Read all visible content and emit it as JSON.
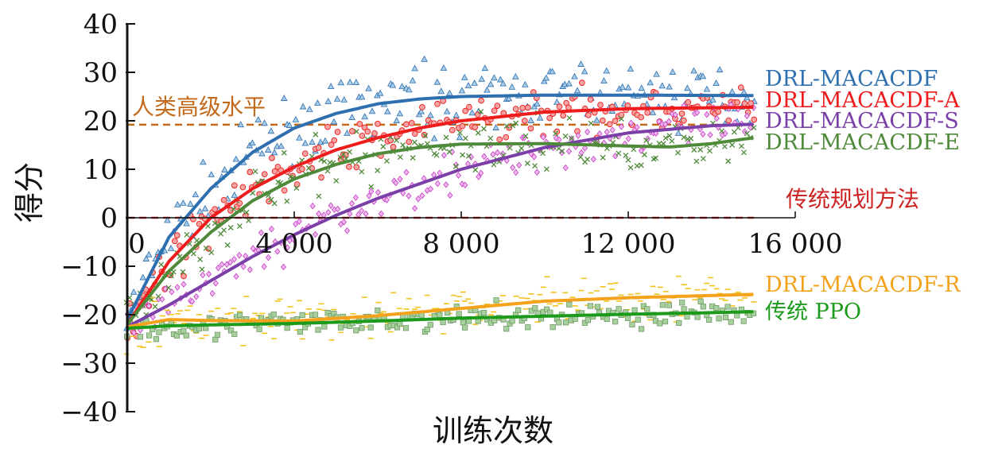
{
  "chart_data": {
    "type": "line",
    "ylabel": "得分",
    "xlabel": "训练次数",
    "xlim": [
      0,
      16000
    ],
    "ylim": [
      -40,
      40
    ],
    "x_ticks": [
      {
        "value": 0,
        "label": "0"
      },
      {
        "value": 4000,
        "label": "4 000"
      },
      {
        "value": 8000,
        "label": "8 000"
      },
      {
        "value": 12000,
        "label": "12 000"
      },
      {
        "value": 16000,
        "label": "16 000"
      }
    ],
    "y_ticks": [
      {
        "value": 40,
        "label": "40"
      },
      {
        "value": 30,
        "label": "30"
      },
      {
        "value": 20,
        "label": "20"
      },
      {
        "value": 10,
        "label": "10"
      },
      {
        "value": 0,
        "label": "0"
      },
      {
        "value": -10,
        "label": "−10"
      },
      {
        "value": -20,
        "label": "−20"
      },
      {
        "value": -30,
        "label": "−30"
      },
      {
        "value": -40,
        "label": "−40"
      }
    ],
    "reference_lines": [
      {
        "name": "人类高级水平",
        "y": 19.2,
        "color": "#c46a1c"
      },
      {
        "name": "传统规划方法",
        "y": 0,
        "color": "#cc2222"
      }
    ],
    "series": [
      {
        "name": "DRL-MACACDF",
        "color": "#2e6fb0",
        "marker": "triangle",
        "x": [
          0,
          1000,
          2000,
          3000,
          4000,
          5000,
          6000,
          7000,
          8000,
          10000,
          12000,
          15000
        ],
        "y": [
          -21,
          -4,
          6,
          13.5,
          18.5,
          21.5,
          23.5,
          24.5,
          25,
          25.3,
          25.3,
          25.2
        ]
      },
      {
        "name": "DRL-MACACDF-A",
        "color": "#ee1c1c",
        "marker": "circle",
        "x": [
          0,
          1000,
          2000,
          3000,
          4000,
          5000,
          6000,
          7000,
          8000,
          10000,
          12000,
          15000
        ],
        "y": [
          -22,
          -9,
          0,
          6,
          10.5,
          14,
          16.5,
          18.5,
          20,
          21.8,
          22.5,
          22.8
        ]
      },
      {
        "name": "DRL-MACACDF-S",
        "color": "#7b3fa8",
        "marker": "diamond",
        "x": [
          0,
          1000,
          2000,
          3000,
          4000,
          5000,
          6000,
          7000,
          8000,
          10000,
          12000,
          14000,
          15000
        ],
        "y": [
          -22.5,
          -18,
          -13,
          -8,
          -3.5,
          0.5,
          4,
          7,
          10,
          14.5,
          17.5,
          19,
          19.3
        ]
      },
      {
        "name": "DRL-MACACDF-E",
        "color": "#4f8a3a",
        "marker": "x",
        "x": [
          0,
          1000,
          2000,
          3000,
          4000,
          5000,
          6000,
          7000,
          8000,
          10000,
          12000,
          13000,
          14000,
          15000
        ],
        "y": [
          -22,
          -11,
          -3,
          3.5,
          8,
          11,
          13.2,
          14.5,
          15.2,
          15.3,
          14.8,
          14.6,
          15.3,
          16.5
        ]
      },
      {
        "name": "DRL-MACACDF-R",
        "color": "#f4a21c",
        "marker": "dash",
        "x": [
          0,
          1000,
          2000,
          4000,
          6000,
          8000,
          10000,
          12000,
          15000
        ],
        "y": [
          -22.5,
          -21,
          -21.2,
          -21.3,
          -20.2,
          -18.7,
          -17.2,
          -16.5,
          -15.8
        ]
      },
      {
        "name": "传统 PPO",
        "color": "#1b9a1b",
        "marker": "square",
        "x": [
          0,
          1000,
          2000,
          4000,
          6000,
          8000,
          10000,
          12000,
          15000
        ],
        "y": [
          -22.8,
          -22.3,
          -22.1,
          -21.8,
          -21.3,
          -20.7,
          -20.3,
          -19.9,
          -19.4
        ]
      }
    ]
  }
}
